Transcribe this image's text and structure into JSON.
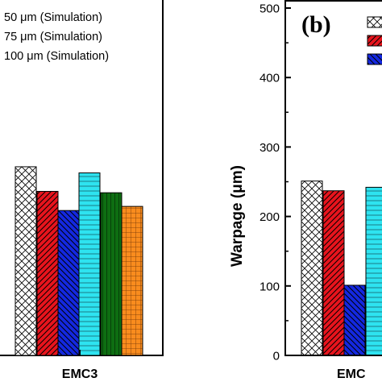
{
  "chart_data": [
    {
      "panel": "left",
      "type": "bar",
      "categories": [
        "EMC3"
      ],
      "legend_entries": [
        "50 μm (Simulation)",
        "75 μm (Simulation)",
        "100 μm (Simulation)"
      ],
      "series": [
        {
          "values": [
            276
          ],
          "color": "#ffffff",
          "pattern": "crosshatch"
        },
        {
          "values": [
            240
          ],
          "color": "#e8141d",
          "pattern": "diagonal"
        },
        {
          "values": [
            212
          ],
          "color": "#1428e0",
          "pattern": "diagonal"
        },
        {
          "values": [
            267
          ],
          "color": "#2ee3f0",
          "pattern": "horizontal"
        },
        {
          "values": [
            238
          ],
          "color": "#0e6e12",
          "pattern": "vertical"
        },
        {
          "values": [
            218
          ],
          "color": "#f98c1e",
          "pattern": "grid"
        }
      ],
      "ylim": [
        0,
        520
      ],
      "grid": false
    },
    {
      "panel": "right",
      "type": "bar",
      "panel_label": "(b)",
      "categories": [
        "EMC"
      ],
      "ylabel": "Warpage (μm)",
      "ylim": [
        0,
        500
      ],
      "yticks": [
        "0",
        "100",
        "200",
        "300",
        "400",
        "500"
      ],
      "series": [
        {
          "values": [
            251
          ],
          "color": "#ffffff",
          "pattern": "crosshatch"
        },
        {
          "values": [
            237
          ],
          "color": "#e8141d",
          "pattern": "diagonal"
        },
        {
          "values": [
            101
          ],
          "color": "#1428e0",
          "pattern": "diagonal"
        },
        {
          "values": [
            242
          ],
          "color": "#2ee3f0",
          "pattern": "horizontal"
        }
      ],
      "legend_swatches": [
        "#ffffff",
        "#e8141d",
        "#1428e0"
      ],
      "grid": false
    }
  ]
}
